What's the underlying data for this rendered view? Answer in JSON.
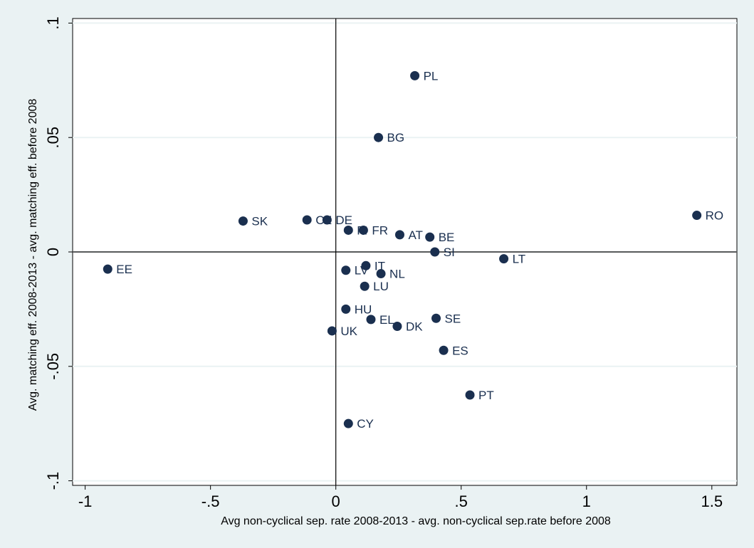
{
  "chart_data": {
    "type": "scatter",
    "title": "",
    "xlabel": "Avg non-cyclical sep. rate 2008-2013 - avg. non-cyclical sep.rate before 2008",
    "ylabel": "Avg. matching eff. 2008-2013 - avg. matching eff. before 2008",
    "xlim": [
      -1.05,
      1.6
    ],
    "ylim": [
      -0.102,
      0.102
    ],
    "x_ticks": [
      -1,
      -0.5,
      0,
      0.5,
      1,
      1.5
    ],
    "x_tick_labels": [
      "-1",
      "-.5",
      "0",
      ".5",
      "1",
      "1.5"
    ],
    "y_ticks": [
      -0.1,
      -0.05,
      0,
      0.05,
      0.1
    ],
    "y_tick_labels": [
      "-.1",
      "-.05",
      "0",
      ".05",
      ".1"
    ],
    "grid": "horizontal",
    "reference_lines": {
      "x": 0,
      "y": 0
    },
    "marker_color": "#1a2f4f",
    "points": [
      {
        "label": "PL",
        "x": 0.315,
        "y": 0.077
      },
      {
        "label": "BG",
        "x": 0.17,
        "y": 0.05
      },
      {
        "label": "RO",
        "x": 1.44,
        "y": 0.016
      },
      {
        "label": "SK",
        "x": -0.37,
        "y": 0.0135
      },
      {
        "label": "CZ",
        "x": -0.115,
        "y": 0.014
      },
      {
        "label": "DE",
        "x": -0.035,
        "y": 0.014
      },
      {
        "label": "FI",
        "x": 0.05,
        "y": 0.0095
      },
      {
        "label": "FR",
        "x": 0.11,
        "y": 0.0095
      },
      {
        "label": "AT",
        "x": 0.255,
        "y": 0.0075
      },
      {
        "label": "BE",
        "x": 0.375,
        "y": 0.0065
      },
      {
        "label": "SI",
        "x": 0.395,
        "y": 0.0
      },
      {
        "label": "LT",
        "x": 0.67,
        "y": -0.003
      },
      {
        "label": "EE",
        "x": -0.91,
        "y": -0.0075
      },
      {
        "label": "IT",
        "x": 0.12,
        "y": -0.006
      },
      {
        "label": "LV",
        "x": 0.04,
        "y": -0.008
      },
      {
        "label": "NL",
        "x": 0.18,
        "y": -0.0095
      },
      {
        "label": "LU",
        "x": 0.115,
        "y": -0.015
      },
      {
        "label": "HU",
        "x": 0.04,
        "y": -0.025
      },
      {
        "label": "EL",
        "x": 0.14,
        "y": -0.0295
      },
      {
        "label": "SE",
        "x": 0.4,
        "y": -0.029
      },
      {
        "label": "DK",
        "x": 0.245,
        "y": -0.0325
      },
      {
        "label": "UK",
        "x": -0.015,
        "y": -0.0345
      },
      {
        "label": "ES",
        "x": 0.43,
        "y": -0.043
      },
      {
        "label": "PT",
        "x": 0.535,
        "y": -0.0625
      },
      {
        "label": "CY",
        "x": 0.05,
        "y": -0.075
      }
    ]
  }
}
